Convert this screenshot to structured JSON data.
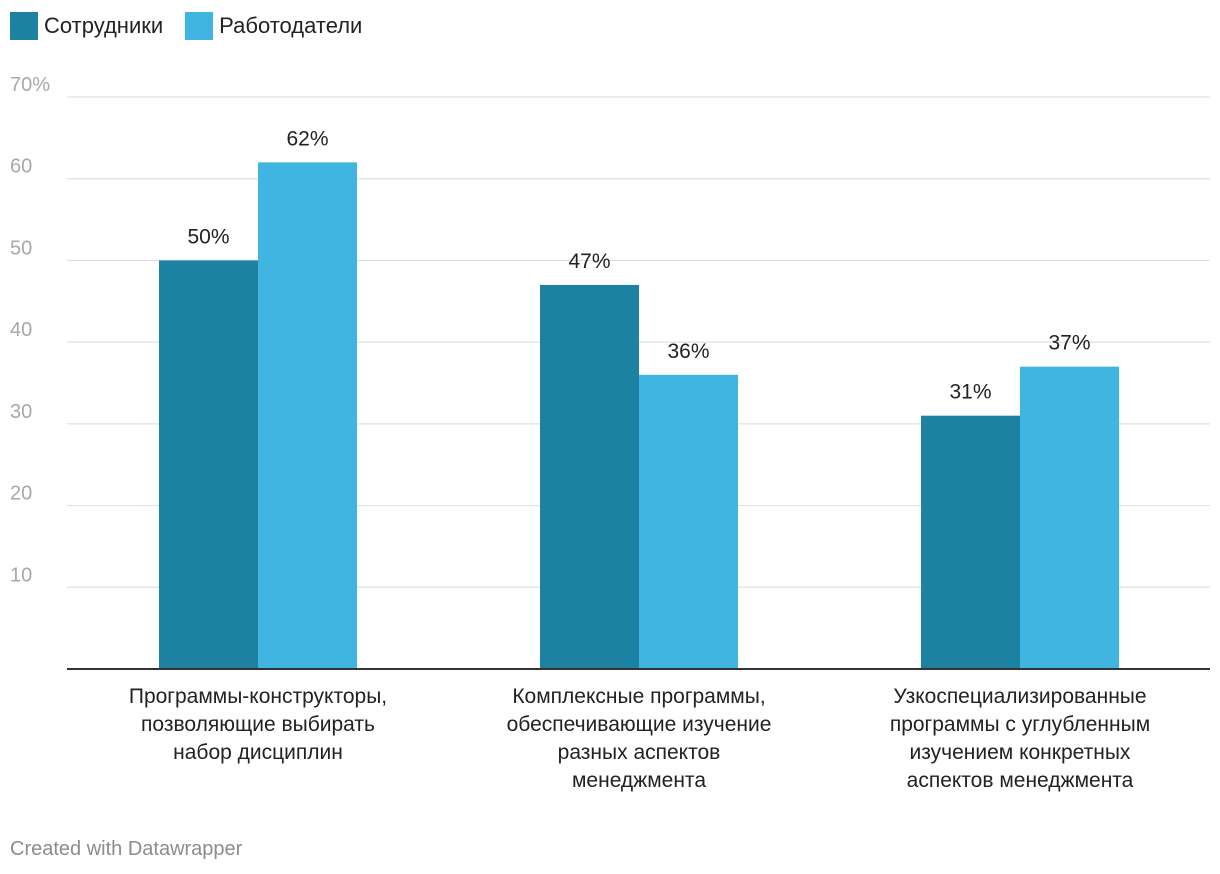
{
  "chart_data": {
    "type": "bar",
    "title": "",
    "xlabel": "",
    "ylabel": "",
    "ylim": [
      0,
      70
    ],
    "yticks": [
      10,
      20,
      30,
      40,
      50,
      60,
      70
    ],
    "ytick_labels": [
      "10",
      "20",
      "30",
      "40",
      "50",
      "60",
      "70%"
    ],
    "grid": true,
    "legend_position": "top-left",
    "categories": [
      [
        "Программы-конструкторы,",
        "позволяющие выбирать",
        "набор дисциплин"
      ],
      [
        "Комплексные программы,",
        "обеспечивающие изучение",
        "разных аспектов",
        "менеджмента"
      ],
      [
        "Узкоспециализированные",
        "программы с углубленным",
        "изучением конкретных",
        "аспектов менеджмента"
      ]
    ],
    "series": [
      {
        "name": "Сотрудники",
        "color": "#1d81a2",
        "values": [
          50,
          47,
          31
        ],
        "labels": [
          "50%",
          "47%",
          "31%"
        ]
      },
      {
        "name": "Работодатели",
        "color": "#40b5e2",
        "values": [
          62,
          36,
          37
        ],
        "labels": [
          "62%",
          "36%",
          "37%"
        ]
      }
    ]
  },
  "footer": {
    "text": "Created with Datawrapper"
  }
}
